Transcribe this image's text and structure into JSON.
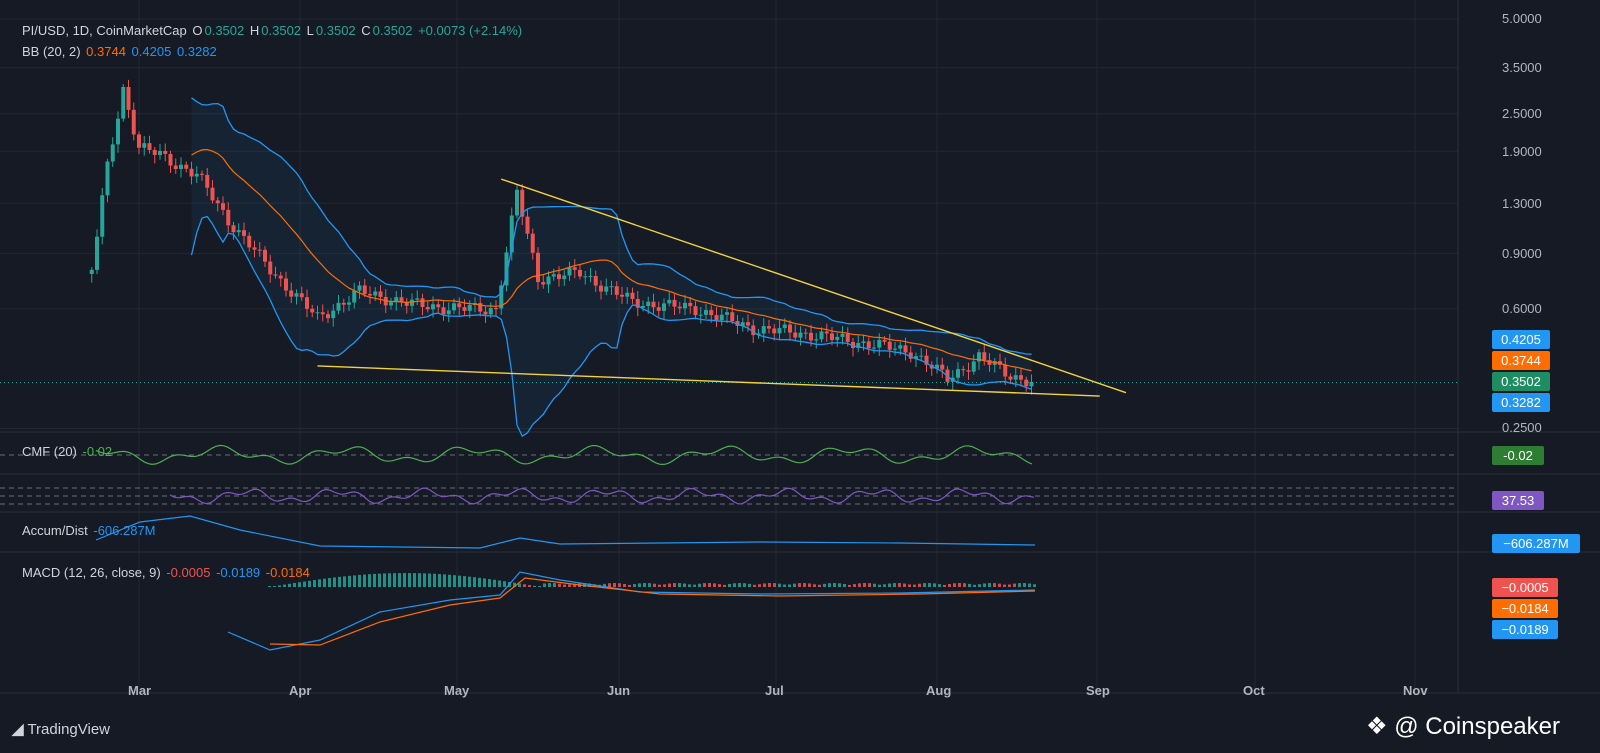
{
  "header": {
    "symbol": "PI/USD, 1D, CoinMarketCap",
    "o_label": "O",
    "o_value": "0.3502",
    "h_label": "H",
    "h_value": "0.3502",
    "l_label": "L",
    "l_value": "0.3502",
    "c_label": "C",
    "c_value": "0.3502",
    "change": "+0.0073 (+2.14%)"
  },
  "bb": {
    "label": "BB (20, 2)",
    "basis": "0.3744",
    "upper": "0.4205",
    "lower": "0.3282"
  },
  "cmf": {
    "label": "CMF (20)",
    "value": "-0.02"
  },
  "rsi": {
    "badge": "37.53"
  },
  "accum": {
    "label": "Accum/Dist",
    "value": "-606.287M",
    "badge": "−606.287M"
  },
  "macd": {
    "label": "MACD (12, 26, close, 9)",
    "hist": "-0.0005",
    "macd": "-0.0189",
    "signal": "-0.0184",
    "badge_hist": "−0.0005",
    "badge_signal": "−0.0184",
    "badge_macd": "−0.0189"
  },
  "price_badges": {
    "upper": "0.4205",
    "basis": "0.3744",
    "last": "0.3502",
    "lower": "0.3282"
  },
  "y_axis_labels": [
    "5.0000",
    "3.5000",
    "2.5000",
    "1.9000",
    "1.3000",
    "0.9000",
    "0.6000",
    "0.2500"
  ],
  "x_axis_labels": [
    "Mar",
    "Apr",
    "May",
    "Jun",
    "Jul",
    "Aug",
    "Sep",
    "Oct",
    "Nov"
  ],
  "footer": {
    "brand": "TradingView",
    "watermark": "@ Coinspeaker"
  },
  "colors": {
    "background": "#161a25",
    "up": "#26a69a",
    "down": "#ef5350",
    "bb_band": "#2196f3",
    "bb_basis": "#ff6d00",
    "trendline": "#f2d33c",
    "cmf": "#4caf50",
    "rsi": "#7e57c2",
    "accum": "#2196f3",
    "macd": "#2196f3",
    "signal": "#ff6d00"
  },
  "chart_data": {
    "type": "candlestick",
    "y_scale": "log",
    "y_ticks": [
      5.0,
      3.5,
      2.5,
      1.9,
      1.3,
      0.9,
      0.6,
      0.25
    ],
    "last_close": 0.3502,
    "close_path": [
      {
        "x": "Feb 20",
        "y": 0.8
      },
      {
        "x": "Feb 23",
        "y": 1.7
      },
      {
        "x": "Feb 26",
        "y": 3.0
      },
      {
        "x": "Mar 1",
        "y": 1.95
      },
      {
        "x": "Mar 5",
        "y": 1.85
      },
      {
        "x": "Mar 12",
        "y": 1.6
      },
      {
        "x": "Mar 18",
        "y": 1.15
      },
      {
        "x": "Mar 26",
        "y": 0.8
      },
      {
        "x": "Apr 4",
        "y": 0.56
      },
      {
        "x": "Apr 12",
        "y": 0.68
      },
      {
        "x": "Apr 22",
        "y": 0.62
      },
      {
        "x": "May 1",
        "y": 0.6
      },
      {
        "x": "May 8",
        "y": 0.6
      },
      {
        "x": "May 12",
        "y": 1.4
      },
      {
        "x": "May 16",
        "y": 0.75
      },
      {
        "x": "May 24",
        "y": 0.78
      },
      {
        "x": "Jun 3",
        "y": 0.63
      },
      {
        "x": "Jun 15",
        "y": 0.6
      },
      {
        "x": "Jun 26",
        "y": 0.52
      },
      {
        "x": "Jul 6",
        "y": 0.5
      },
      {
        "x": "Jul 16",
        "y": 0.47
      },
      {
        "x": "Jul 26",
        "y": 0.44
      },
      {
        "x": "Aug 2",
        "y": 0.36
      },
      {
        "x": "Aug 8",
        "y": 0.42
      },
      {
        "x": "Aug 14",
        "y": 0.37
      },
      {
        "x": "Aug 18",
        "y": 0.35
      }
    ],
    "indicators": [
      "BB (20, 2)",
      "CMF (20)",
      "Accum/Dist",
      "MACD (12, 26, close, 9)"
    ],
    "annotations": [
      "descending upper trendline",
      "lower support trendline"
    ]
  }
}
